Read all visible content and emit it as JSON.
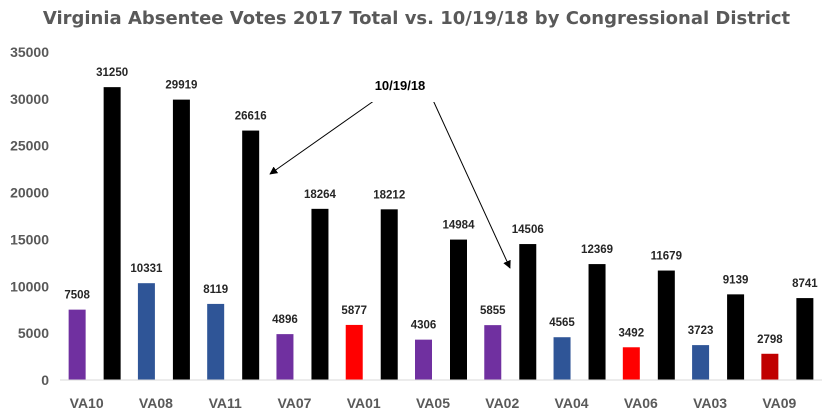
{
  "chart_data": {
    "type": "bar",
    "title": "Virginia Absentee Votes 2017 Total vs. 10/19/18 by Congressional District",
    "categories": [
      "VA10",
      "VA08",
      "VA11",
      "VA07",
      "VA01",
      "VA05",
      "VA02",
      "VA04",
      "VA06",
      "VA03",
      "VA09"
    ],
    "series": [
      {
        "values": [
          7508,
          10331,
          8119,
          4896,
          5877,
          4306,
          5855,
          4565,
          3492,
          3723,
          2798
        ],
        "colors": [
          "#7030a0",
          "#2f5597",
          "#2f5597",
          "#7030a0",
          "#ff0000",
          "#7030a0",
          "#7030a0",
          "#2f5597",
          "#ff0000",
          "#2f5597",
          "#c00000"
        ]
      },
      {
        "name": "10/19/18",
        "values": [
          31250,
          29919,
          26616,
          18264,
          18212,
          14984,
          14506,
          12369,
          11679,
          9139,
          8741
        ],
        "color": "#000000"
      }
    ],
    "ylim": [
      0,
      35000
    ],
    "yticks": [
      0,
      5000,
      10000,
      15000,
      20000,
      25000,
      30000,
      35000
    ],
    "grid": false,
    "annotation": {
      "text": "10/19/18",
      "points_to": [
        "VA11",
        "VA02"
      ]
    },
    "xlabel": "",
    "ylabel": ""
  }
}
